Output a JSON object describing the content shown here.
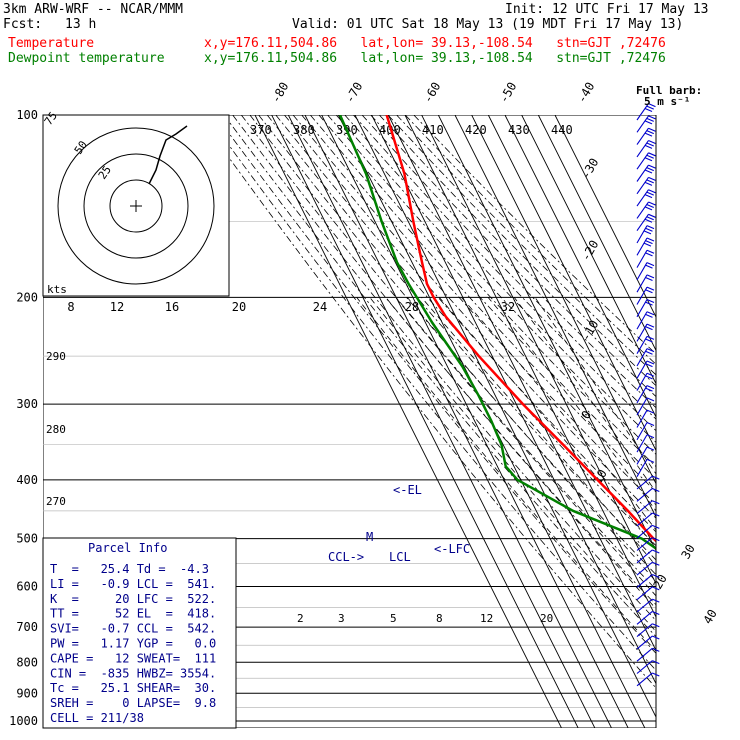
{
  "header": {
    "model": "3km ARW-WRF -- NCAR/MMM",
    "init": "Init: 12 UTC Fri 17 May 13",
    "fcst_label": "Fcst:",
    "fcst_value": "13 h",
    "valid": "Valid: 01 UTC Sat 18 May 13 (19 MDT Fri 17 May 13)",
    "temp_label": "Temperature",
    "dew_label": "Dewpoint temperature",
    "loc_temp": "x,y=176.11,504.86   lat,lon= 39.13,-108.54   stn=GJT ,72476",
    "loc_dew": "x,y=176.11,504.86   lat,lon= 39.13,-108.54   stn=GJT ,72476"
  },
  "colors": {
    "temperature": "#ff0000",
    "dewpoint": "#008000",
    "parcel": "#00008b",
    "barbs": "#0000cd"
  },
  "full_barb": {
    "line1": "Full barb:",
    "line2": "5 m s⁻¹"
  },
  "hodograph": {
    "kts_label": "kts"
  },
  "chart_data": {
    "type": "line",
    "title": "",
    "y_axis": {
      "scale": "log",
      "ylim": [
        1000,
        100
      ],
      "ticks": [
        "100",
        "200",
        "300",
        "400",
        "500",
        "600",
        "700",
        "800",
        "900",
        "1000"
      ]
    },
    "isotherm_labels": [
      "-80",
      "-70",
      "-60",
      "-50",
      "-40",
      "-30",
      "-20",
      "-10",
      "0",
      "10",
      "20",
      "30",
      "40"
    ],
    "theta_e_labels": [
      "370",
      "380",
      "390",
      "400",
      "410",
      "420",
      "430",
      "440"
    ],
    "hodo_speed_labels": [
      "8",
      "12",
      "16",
      "20",
      "24",
      "28",
      "32"
    ],
    "mixing_ratio_labels": [
      "2",
      "3",
      "5",
      "8",
      "12",
      "20"
    ],
    "theta_labels": [
      "290",
      "280",
      "270"
    ],
    "hodo_ring_labels": [
      "75",
      "50",
      "25"
    ],
    "series": [
      {
        "name": "Temperature",
        "points": [
          [
            100,
            -41
          ],
          [
            125,
            -48
          ],
          [
            150,
            -57
          ],
          [
            175,
            -64
          ],
          [
            190,
            -67.5
          ],
          [
            200,
            -67.5
          ],
          [
            215,
            -66
          ],
          [
            250,
            -58
          ],
          [
            300,
            -46
          ],
          [
            350,
            -34
          ],
          [
            400,
            -24
          ],
          [
            450,
            -15
          ],
          [
            500,
            -8
          ],
          [
            550,
            1
          ],
          [
            600,
            4
          ],
          [
            700,
            12
          ],
          [
            800,
            20
          ],
          [
            850,
            24
          ]
        ]
      },
      {
        "name": "Dewpoint temperature",
        "points": [
          [
            100,
            -69
          ],
          [
            125,
            -71
          ],
          [
            150,
            -76
          ],
          [
            175,
            -79
          ],
          [
            190,
            -78.5
          ],
          [
            220,
            -76
          ],
          [
            260,
            -71
          ],
          [
            290,
            -70
          ],
          [
            320,
            -70
          ],
          [
            350,
            -71
          ],
          [
            380,
            -75
          ],
          [
            400,
            -72
          ],
          [
            450,
            -48
          ],
          [
            500,
            -15
          ],
          [
            550,
            -1
          ],
          [
            600,
            -1
          ],
          [
            700,
            -6
          ],
          [
            800,
            -10
          ],
          [
            850,
            -12
          ]
        ]
      }
    ],
    "annotations": [
      "<-EL",
      "M",
      "<-LFC",
      "CCL->",
      "LCL"
    ]
  },
  "parcel_info": {
    "title": "Parcel Info",
    "rows": [
      "T  =   25.4 Td =  -4.3",
      "LI =   -0.9 LCL =  541.",
      "K  =     20 LFC =  522.",
      "TT =     52 EL  =  418.",
      "SVI=   -0.7 CCL =  542.",
      "PW =   1.17 YGP =   0.0",
      "CAPE =   12 SWEAT=  111",
      "CIN =  -835 HWBZ= 3554.",
      "Tc =   25.1 SHEAR=  30.",
      "SREH =    0 LAPSE=  9.8",
      "CELL = 211/38"
    ]
  }
}
